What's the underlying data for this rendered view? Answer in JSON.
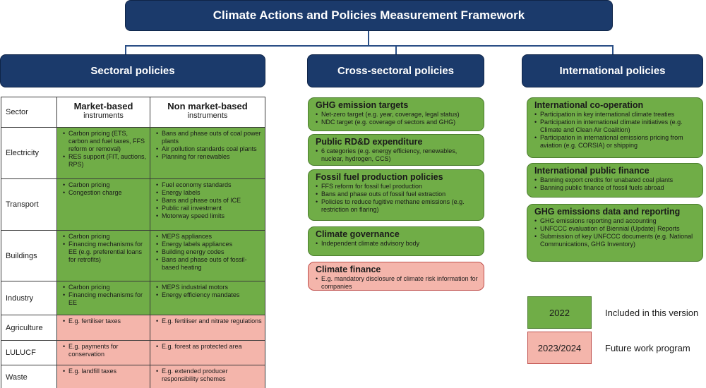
{
  "title": "Climate Actions and Policies Measurement Framework",
  "columns": {
    "sectoral": "Sectoral policies",
    "cross_sectoral": "Cross-sectoral policies",
    "international": "International policies"
  },
  "sector_table": {
    "sector_header": "Sector",
    "market_title": "Market-based",
    "market_sub": "instruments",
    "nonmarket_title": "Non market-based",
    "nonmarket_sub": "instruments",
    "rows": [
      {
        "sector": "Electricity",
        "status": "2022",
        "market": [
          "Carbon pricing (ETS, carbon and fuel taxes, FFS reform or removal)",
          "RES support (FIT, auctions, RPS)"
        ],
        "nonmarket": [
          "Bans and phase outs of coal power plants",
          "Air pollution standards coal plants",
          "Planning for renewables"
        ]
      },
      {
        "sector": "Transport",
        "status": "2022",
        "market": [
          "Carbon pricing",
          "Congestion charge"
        ],
        "nonmarket": [
          "Fuel economy standards",
          "Energy labels",
          "Bans and phase outs of ICE",
          "Public rail investment",
          "Motorway speed limits"
        ]
      },
      {
        "sector": "Buildings",
        "status": "2022",
        "market": [
          "Carbon pricing",
          "Financing mechanisms for EE (e.g. preferential loans for retrofits)"
        ],
        "nonmarket": [
          "MEPS appliances",
          "Energy labels appliances",
          "Building energy codes",
          "Bans and phase outs of fossil-based heating"
        ]
      },
      {
        "sector": "Industry",
        "status": "2022",
        "market": [
          "Carbon pricing",
          "Financing mechanisms for EE"
        ],
        "nonmarket": [
          "MEPS industrial motors",
          "Energy efficiency mandates"
        ]
      },
      {
        "sector": "Agriculture",
        "status": "2023/2024",
        "market": [
          "E.g. fertiliser taxes"
        ],
        "nonmarket": [
          "E.g. fertiliser and nitrate regulations"
        ]
      },
      {
        "sector": "LULUCF",
        "status": "2023/2024",
        "market": [
          "E.g. payments for conservation"
        ],
        "nonmarket": [
          "E.g. forest as protected area"
        ]
      },
      {
        "sector": "Waste",
        "status": "2023/2024",
        "market": [
          "E.g. landfill taxes"
        ],
        "nonmarket": [
          "E.g. extended producer responsibility schemes"
        ]
      }
    ]
  },
  "cross_sectoral": [
    {
      "title": "GHG emission targets",
      "status": "2022",
      "items": [
        "Net-zero target (e.g. year, coverage, legal status)",
        "NDC target (e.g. coverage of sectors and GHG)"
      ]
    },
    {
      "title": "Public RD&D expenditure",
      "status": "2022",
      "items": [
        "6 categories (e.g. energy efficiency, renewables, nuclear, hydrogen, CCS)"
      ]
    },
    {
      "title": "Fossil fuel production policies",
      "status": "2022",
      "items": [
        "FFS reform for fossil fuel production",
        "Bans and phase outs of fossil fuel extraction",
        "Policies to reduce fugitive methane emissions (e.g. restriction on flaring)"
      ]
    },
    {
      "title": "Climate governance",
      "status": "2022",
      "items": [
        "Independent climate advisory body"
      ]
    },
    {
      "title": "Climate finance",
      "status": "2023/2024",
      "items": [
        "E.g. mandatory disclosure of climate risk information for companies"
      ]
    }
  ],
  "international": [
    {
      "title": "International co-operation",
      "status": "2022",
      "items": [
        "Participation in key international climate treaties",
        "Participation in international climate initiatives (e.g. Climate and Clean Air Coalition)",
        "Participation in international emissions pricing from aviation (e.g. CORSIA) or shipping"
      ]
    },
    {
      "title": "International public finance",
      "status": "2022",
      "items": [
        "Banning export credits for unabated coal plants",
        "Banning public finance of fossil fuels abroad"
      ]
    },
    {
      "title": "GHG emissions data and reporting",
      "status": "2022",
      "items": [
        "GHG emissions reporting and accounting",
        "UNFCCC evaluation of Biennial (Update) Reports",
        "Submission of key UNFCCC documents (e.g. National Communications, GHG Inventory)"
      ]
    }
  ],
  "legend": [
    {
      "swatch": "2022",
      "label": "Included in this version",
      "color": "#70ad47"
    },
    {
      "swatch": "2023/2024",
      "label": "Future work program",
      "color": "#f4b5ab"
    }
  ]
}
